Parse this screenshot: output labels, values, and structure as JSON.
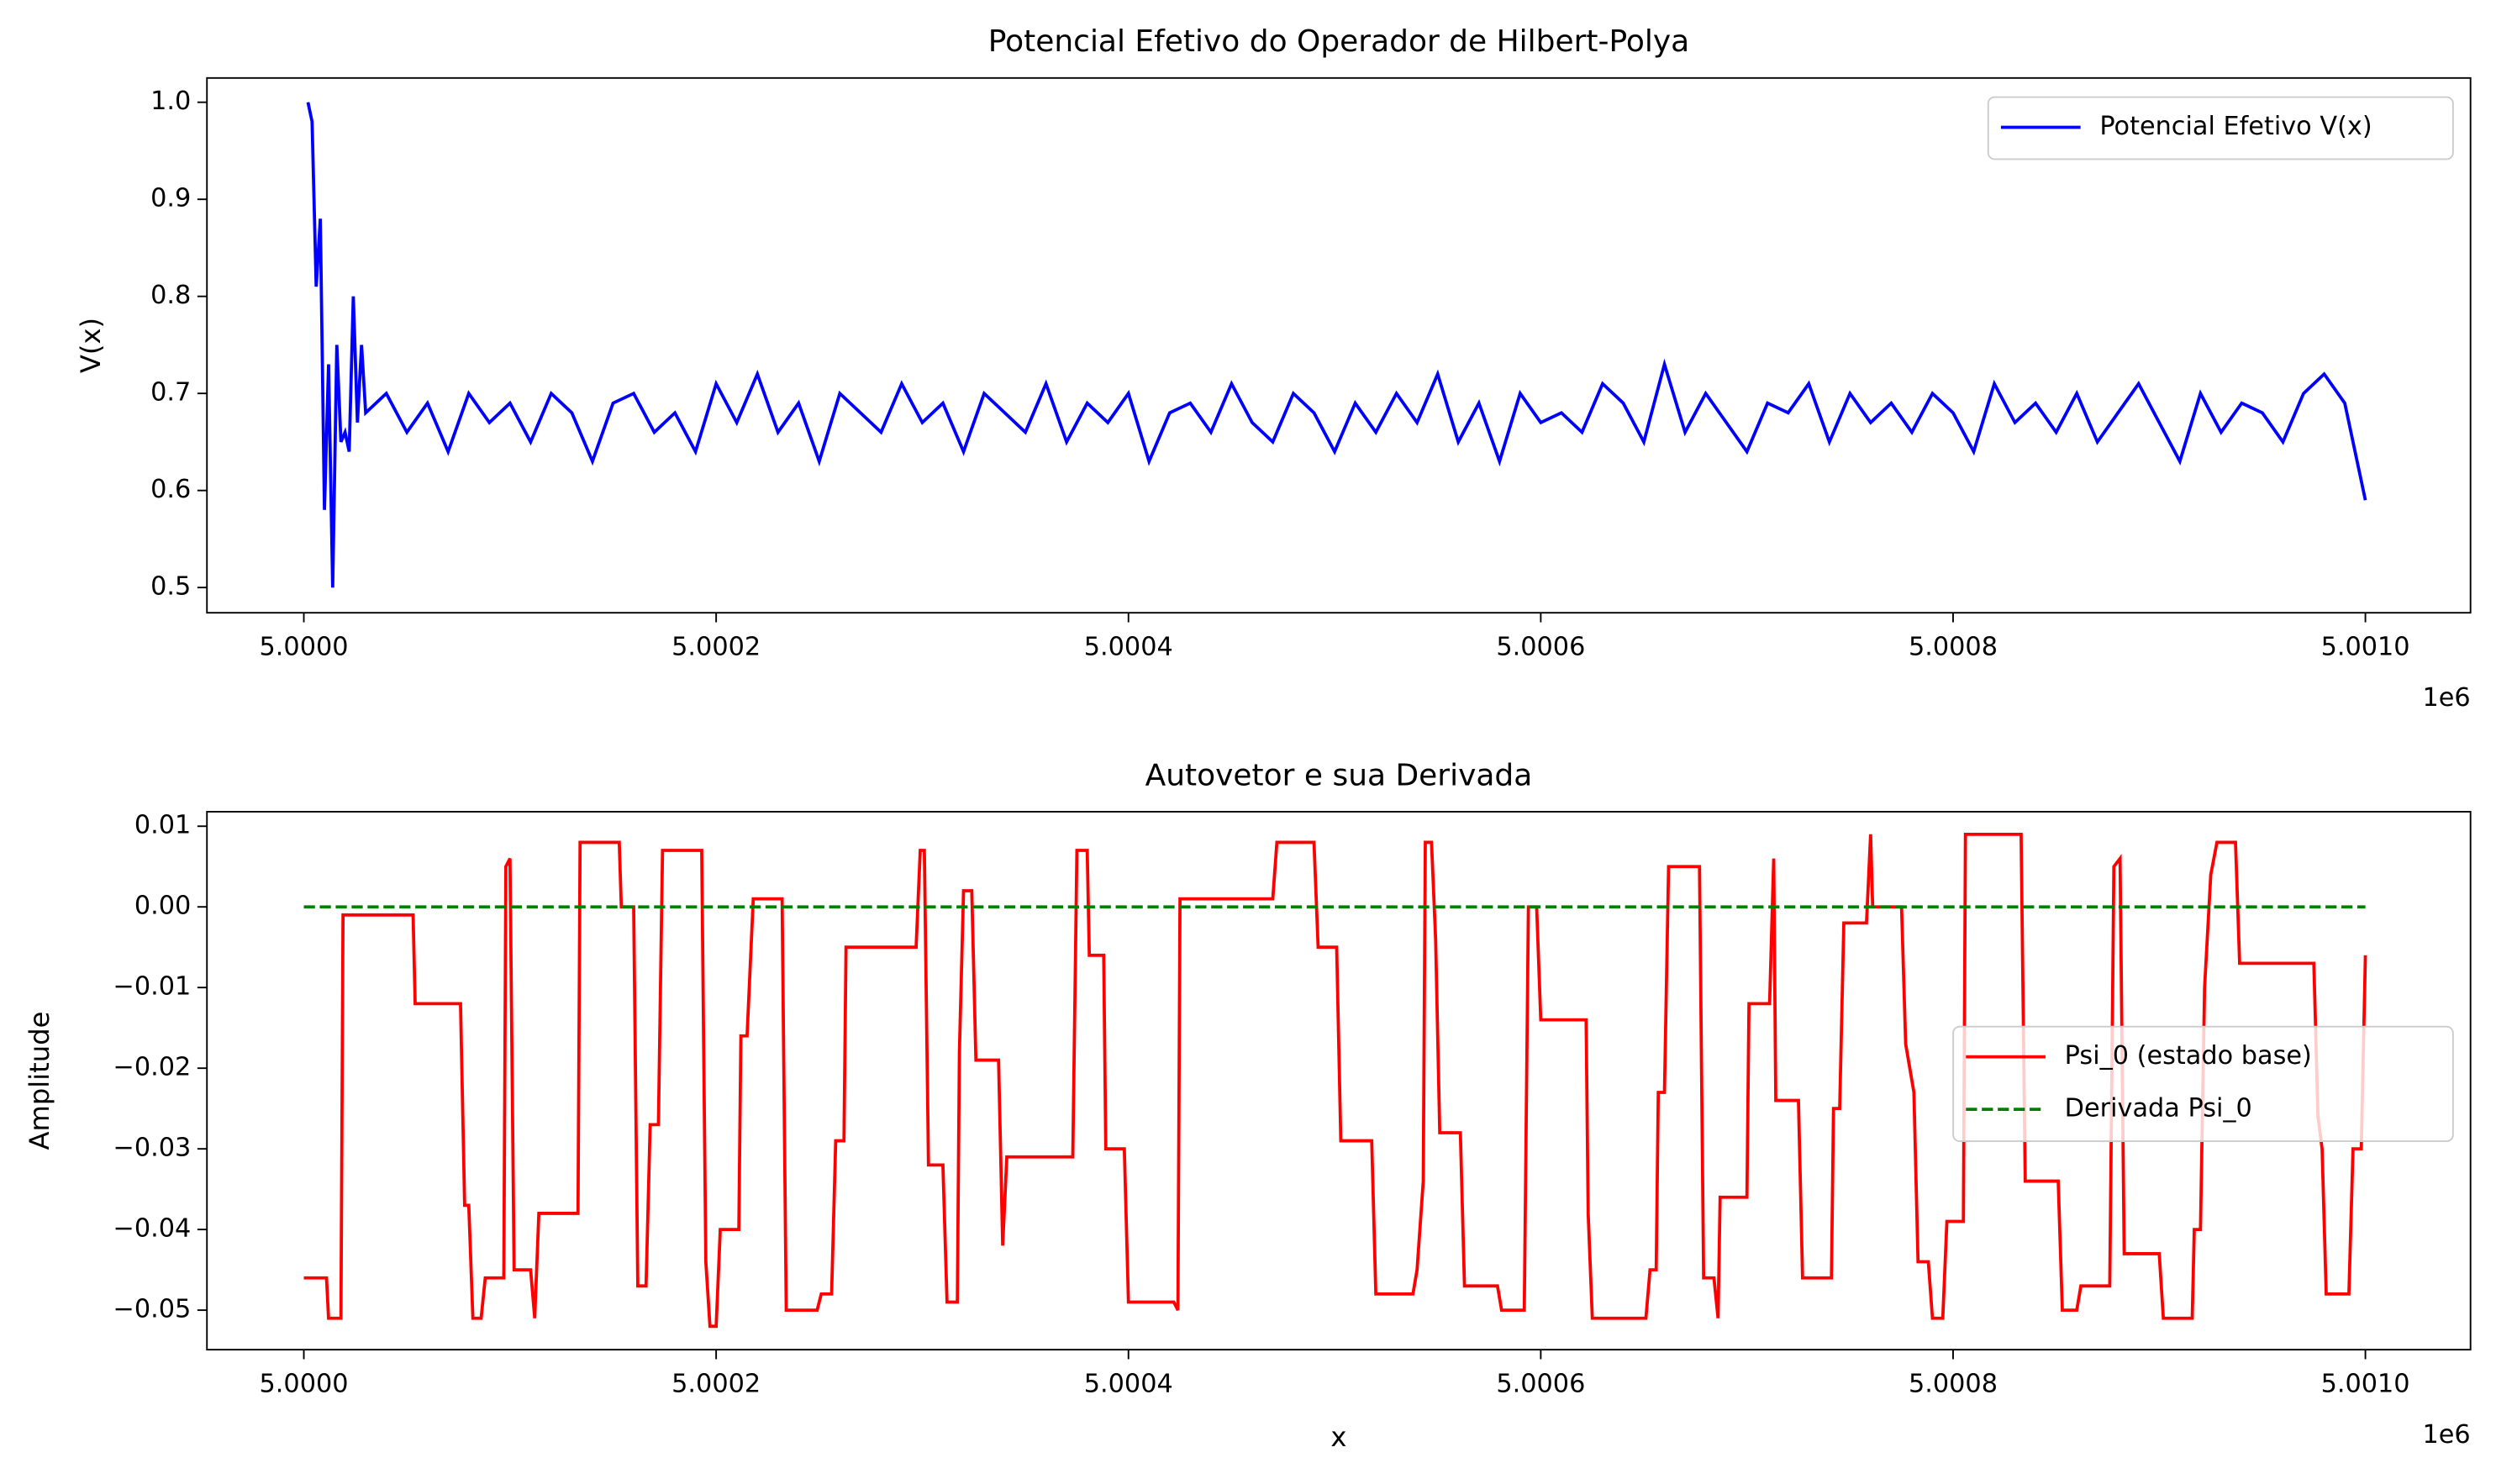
{
  "chart_data": [
    {
      "type": "line",
      "title": "Potencial Efetivo do Operador de Hilbert-Polya",
      "ylabel": "V(x)",
      "x_offset_label": "1e6",
      "legend": "upper right",
      "xlim": [
        4999953,
        5001051
      ],
      "ylim": [
        0.474,
        1.025
      ],
      "xticks": [
        {
          "value": 5000000,
          "label": "5.0000"
        },
        {
          "value": 5000200,
          "label": "5.0002"
        },
        {
          "value": 5000400,
          "label": "5.0004"
        },
        {
          "value": 5000600,
          "label": "5.0006"
        },
        {
          "value": 5000800,
          "label": "5.0008"
        },
        {
          "value": 5001000,
          "label": "5.0010"
        }
      ],
      "yticks": [
        0.5,
        0.6,
        0.7,
        0.8,
        0.9,
        {
          "value": 1,
          "label": "1.0"
        }
      ],
      "series": [
        {
          "name": "Potencial Efetivo V(x)",
          "color": "#0000ff",
          "style": "solid",
          "x": [
            5000002,
            5000004,
            5000006,
            5000008,
            5000010,
            5000012,
            5000014,
            5000016,
            5000018,
            5000020,
            5000022,
            5000024,
            5000026,
            5000028,
            5000030,
            5000040,
            5000050,
            5000060,
            5000070,
            5000080,
            5000090,
            5000100,
            5000110,
            5000120,
            5000130,
            5000140,
            5000150,
            5000160,
            5000170,
            5000180,
            5000190,
            5000200,
            5000210,
            5000220,
            5000230,
            5000240,
            5000250,
            5000260,
            5000270,
            5000280,
            5000290,
            5000300,
            5000310,
            5000320,
            5000330,
            5000340,
            5000350,
            5000360,
            5000370,
            5000380,
            5000390,
            5000400,
            5000410,
            5000420,
            5000430,
            5000440,
            5000450,
            5000460,
            5000470,
            5000480,
            5000490,
            5000500,
            5000510,
            5000520,
            5000530,
            5000540,
            5000550,
            5000560,
            5000570,
            5000580,
            5000590,
            5000600,
            5000610,
            5000620,
            5000630,
            5000640,
            5000650,
            5000660,
            5000670,
            5000680,
            5000690,
            5000700,
            5000710,
            5000720,
            5000730,
            5000740,
            5000750,
            5000760,
            5000770,
            5000780,
            5000790,
            5000800,
            5000810,
            5000820,
            5000830,
            5000840,
            5000850,
            5000860,
            5000870,
            5000880,
            5000890,
            5000900,
            5000910,
            5000920,
            5000930,
            5000940,
            5000950,
            5000960,
            5000970,
            5000980,
            5000990,
            5001000
          ],
          "values": [
            1.0,
            0.98,
            0.81,
            0.88,
            0.58,
            0.73,
            0.5,
            0.75,
            0.65,
            0.66,
            0.64,
            0.8,
            0.67,
            0.75,
            0.68,
            0.7,
            0.66,
            0.69,
            0.64,
            0.7,
            0.67,
            0.69,
            0.65,
            0.7,
            0.68,
            0.63,
            0.69,
            0.7,
            0.66,
            0.68,
            0.64,
            0.71,
            0.67,
            0.72,
            0.66,
            0.69,
            0.63,
            0.7,
            0.68,
            0.66,
            0.71,
            0.67,
            0.69,
            0.64,
            0.7,
            0.68,
            0.66,
            0.71,
            0.65,
            0.69,
            0.67,
            0.7,
            0.63,
            0.68,
            0.69,
            0.66,
            0.71,
            0.67,
            0.65,
            0.7,
            0.68,
            0.64,
            0.69,
            0.66,
            0.7,
            0.67,
            0.72,
            0.65,
            0.69,
            0.63,
            0.7,
            0.67,
            0.68,
            0.66,
            0.71,
            0.69,
            0.65,
            0.73,
            0.66,
            0.7,
            0.67,
            0.64,
            0.69,
            0.68,
            0.71,
            0.65,
            0.7,
            0.67,
            0.69,
            0.66,
            0.7,
            0.68,
            0.64,
            0.71,
            0.67,
            0.69,
            0.66,
            0.7,
            0.65,
            0.68,
            0.71,
            0.67,
            0.63,
            0.7,
            0.66,
            0.69,
            0.68,
            0.65,
            0.7,
            0.72,
            0.69,
            0.59
          ]
        }
      ]
    },
    {
      "type": "line",
      "title": "Autovetor e sua Derivada",
      "xlabel": "x",
      "ylabel": "Amplitude",
      "x_offset_label": "1e6",
      "legend": "center right",
      "xlim": [
        4999953,
        5001051
      ],
      "ylim": [
        -0.0549,
        0.0118
      ],
      "xticks": [
        {
          "value": 5000000,
          "label": "5.0000"
        },
        {
          "value": 5000200,
          "label": "5.0002"
        },
        {
          "value": 5000400,
          "label": "5.0004"
        },
        {
          "value": 5000600,
          "label": "5.0006"
        },
        {
          "value": 5000800,
          "label": "5.0008"
        },
        {
          "value": 5001000,
          "label": "5.0010"
        }
      ],
      "yticks": [
        {
          "value": -0.05,
          "label": "−0.05"
        },
        {
          "value": -0.04,
          "label": "−0.04"
        },
        {
          "value": -0.03,
          "label": "−0.03"
        },
        {
          "value": -0.02,
          "label": "−0.02"
        },
        {
          "value": -0.01,
          "label": "−0.01"
        },
        {
          "value": 0,
          "label": "0.00"
        },
        0.01
      ],
      "series": [
        {
          "name": "Psi_0 (estado base)",
          "color": "#ff0000",
          "style": "solid",
          "x": [
            5000000,
            5000011,
            5000012,
            5000018,
            5000019,
            5000053,
            5000054,
            5000076,
            5000078,
            5000080,
            5000082,
            5000086,
            5000088,
            5000097,
            5000098,
            5000100,
            5000102,
            5000110,
            5000112,
            5000114,
            5000133,
            5000134,
            5000153,
            5000154,
            5000160,
            5000162,
            5000166,
            5000168,
            5000172,
            5000174,
            5000193,
            5000195,
            5000197,
            5000200,
            5000202,
            5000211,
            5000212,
            5000215,
            5000218,
            5000232,
            5000234,
            5000249,
            5000251,
            5000256,
            5000258,
            5000262,
            5000263,
            5000297,
            5000299,
            5000301,
            5000303,
            5000310,
            5000312,
            5000317,
            5000318,
            5000320,
            5000324,
            5000326,
            5000337,
            5000339,
            5000341,
            5000373,
            5000375,
            5000380,
            5000381,
            5000388,
            5000389,
            5000398,
            5000400,
            5000422,
            5000424,
            5000425,
            5000470,
            5000472,
            5000490,
            5000492,
            5000501,
            5000503,
            5000518,
            5000520,
            5000538,
            5000540,
            5000543,
            5000544,
            5000547,
            5000549,
            5000551,
            5000561,
            5000563,
            5000579,
            5000581,
            5000592,
            5000594,
            5000598,
            5000600,
            5000622,
            5000623,
            5000625,
            5000651,
            5000653,
            5000656,
            5000657,
            5000660,
            5000662,
            5000677,
            5000679,
            5000684,
            5000686,
            5000687,
            5000700,
            5000701,
            5000711,
            5000713,
            5000714,
            5000725,
            5000727,
            5000741,
            5000742,
            5000745,
            5000747,
            5000758,
            5000760,
            5000761,
            5000775,
            5000777,
            5000781,
            5000783,
            5000788,
            5000790,
            5000795,
            5000797,
            5000805,
            5000806,
            5000833,
            5000835,
            5000851,
            5000853,
            5000860,
            5000862,
            5000876,
            5000878,
            5000881,
            5000883,
            5000900,
            5000902,
            5000916,
            5000917,
            5000920,
            5000922,
            5000925,
            5000928,
            5000937,
            5000939,
            5000975,
            5000977,
            5000979,
            5000981,
            5000992,
            5000994,
            5000998,
            5001000
          ],
          "values": [
            -0.046,
            -0.046,
            -0.051,
            -0.051,
            -0.001,
            -0.001,
            -0.012,
            -0.012,
            -0.037,
            -0.037,
            -0.051,
            -0.051,
            -0.046,
            -0.046,
            0.005,
            0.006,
            -0.045,
            -0.045,
            -0.051,
            -0.038,
            -0.038,
            0.008,
            0.008,
            0.0,
            0.0,
            -0.047,
            -0.047,
            -0.027,
            -0.027,
            0.007,
            0.007,
            -0.044,
            -0.052,
            -0.052,
            -0.04,
            -0.04,
            -0.016,
            -0.016,
            0.001,
            0.001,
            -0.05,
            -0.05,
            -0.048,
            -0.048,
            -0.029,
            -0.029,
            -0.005,
            -0.005,
            0.007,
            0.007,
            -0.032,
            -0.032,
            -0.049,
            -0.049,
            -0.018,
            0.002,
            0.002,
            -0.019,
            -0.019,
            -0.042,
            -0.031,
            -0.031,
            0.007,
            0.007,
            -0.006,
            -0.006,
            -0.03,
            -0.03,
            -0.049,
            -0.049,
            -0.05,
            0.001,
            0.001,
            0.008,
            0.008,
            -0.005,
            -0.005,
            -0.029,
            -0.029,
            -0.048,
            -0.048,
            -0.045,
            -0.034,
            0.008,
            0.008,
            -0.004,
            -0.028,
            -0.028,
            -0.047,
            -0.047,
            -0.05,
            -0.05,
            0.0,
            0.0,
            -0.014,
            -0.014,
            -0.038,
            -0.051,
            -0.051,
            -0.045,
            -0.045,
            -0.023,
            -0.023,
            0.005,
            0.005,
            -0.046,
            -0.046,
            -0.051,
            -0.036,
            -0.036,
            -0.012,
            -0.012,
            0.006,
            -0.024,
            -0.024,
            -0.046,
            -0.046,
            -0.025,
            -0.025,
            -0.002,
            -0.002,
            0.009,
            0.0,
            0.0,
            -0.017,
            -0.023,
            -0.044,
            -0.044,
            -0.051,
            -0.051,
            -0.039,
            -0.039,
            0.009,
            0.009,
            -0.034,
            -0.034,
            -0.05,
            -0.05,
            -0.047,
            -0.047,
            0.005,
            0.006,
            -0.043,
            -0.043,
            -0.051,
            -0.051,
            -0.04,
            -0.04,
            -0.01,
            0.004,
            0.008,
            0.008,
            -0.007,
            -0.007,
            -0.026,
            -0.03,
            -0.048,
            -0.048,
            -0.03,
            -0.03,
            -0.006
          ]
        },
        {
          "name": "Derivada Psi_0",
          "color": "#008000",
          "style": "dashed",
          "x": [
            5000000,
            5001000
          ],
          "values": [
            0,
            0
          ]
        }
      ]
    }
  ]
}
